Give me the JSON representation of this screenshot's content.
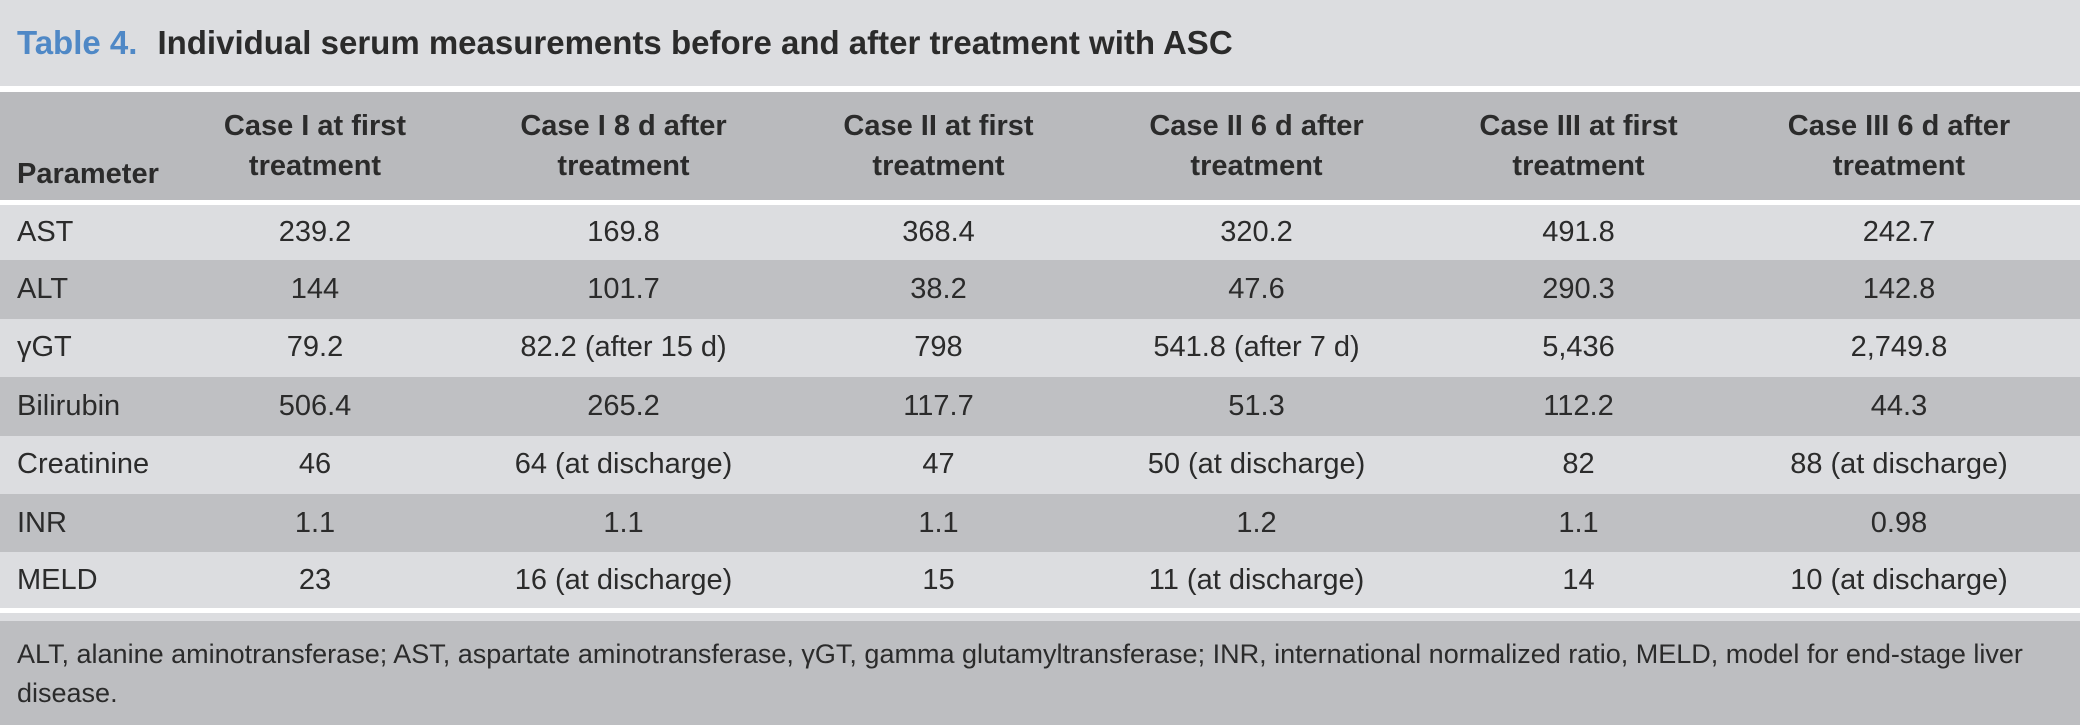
{
  "title": {
    "label": "Table 4.",
    "text": "Individual serum measurements before and after treatment with ASC"
  },
  "table": {
    "header": [
      [
        "Parameter"
      ],
      [
        "Case I at first",
        "treatment"
      ],
      [
        "Case I 8 d after",
        "treatment"
      ],
      [
        "Case II at first",
        "treatment"
      ],
      [
        "Case II 6 d after",
        "treatment"
      ],
      [
        "Case III at first",
        "treatment"
      ],
      [
        "Case III 6 d after",
        "treatment"
      ]
    ],
    "rows": [
      [
        "AST",
        "239.2",
        "169.8",
        "368.4",
        "320.2",
        "491.8",
        "242.7"
      ],
      [
        "ALT",
        "144",
        "101.7",
        "38.2",
        "47.6",
        "290.3",
        "142.8"
      ],
      [
        "γGT",
        "79.2",
        "82.2 (after 15 d)",
        "798",
        "541.8 (after 7 d)",
        "5,436",
        "2,749.8"
      ],
      [
        "Bilirubin",
        "506.4",
        "265.2",
        "117.7",
        "51.3",
        "112.2",
        "44.3"
      ],
      [
        "Creatinine",
        "46",
        "64 (at discharge)",
        "47",
        "50 (at discharge)",
        "82",
        "88 (at discharge)"
      ],
      [
        "INR",
        "1.1",
        "1.1",
        "1.1",
        "1.2",
        "1.1",
        "0.98"
      ],
      [
        "MELD",
        "23",
        "16 (at discharge)",
        "15",
        "11 (at discharge)",
        "14",
        "10 (at discharge)"
      ]
    ]
  },
  "footnote": "ALT, alanine aminotransferase; AST, aspartate aminotransferase, γGT, gamma glutamyltransferase; INR, international normalized ratio, MELD, model for end-stage liver disease."
}
